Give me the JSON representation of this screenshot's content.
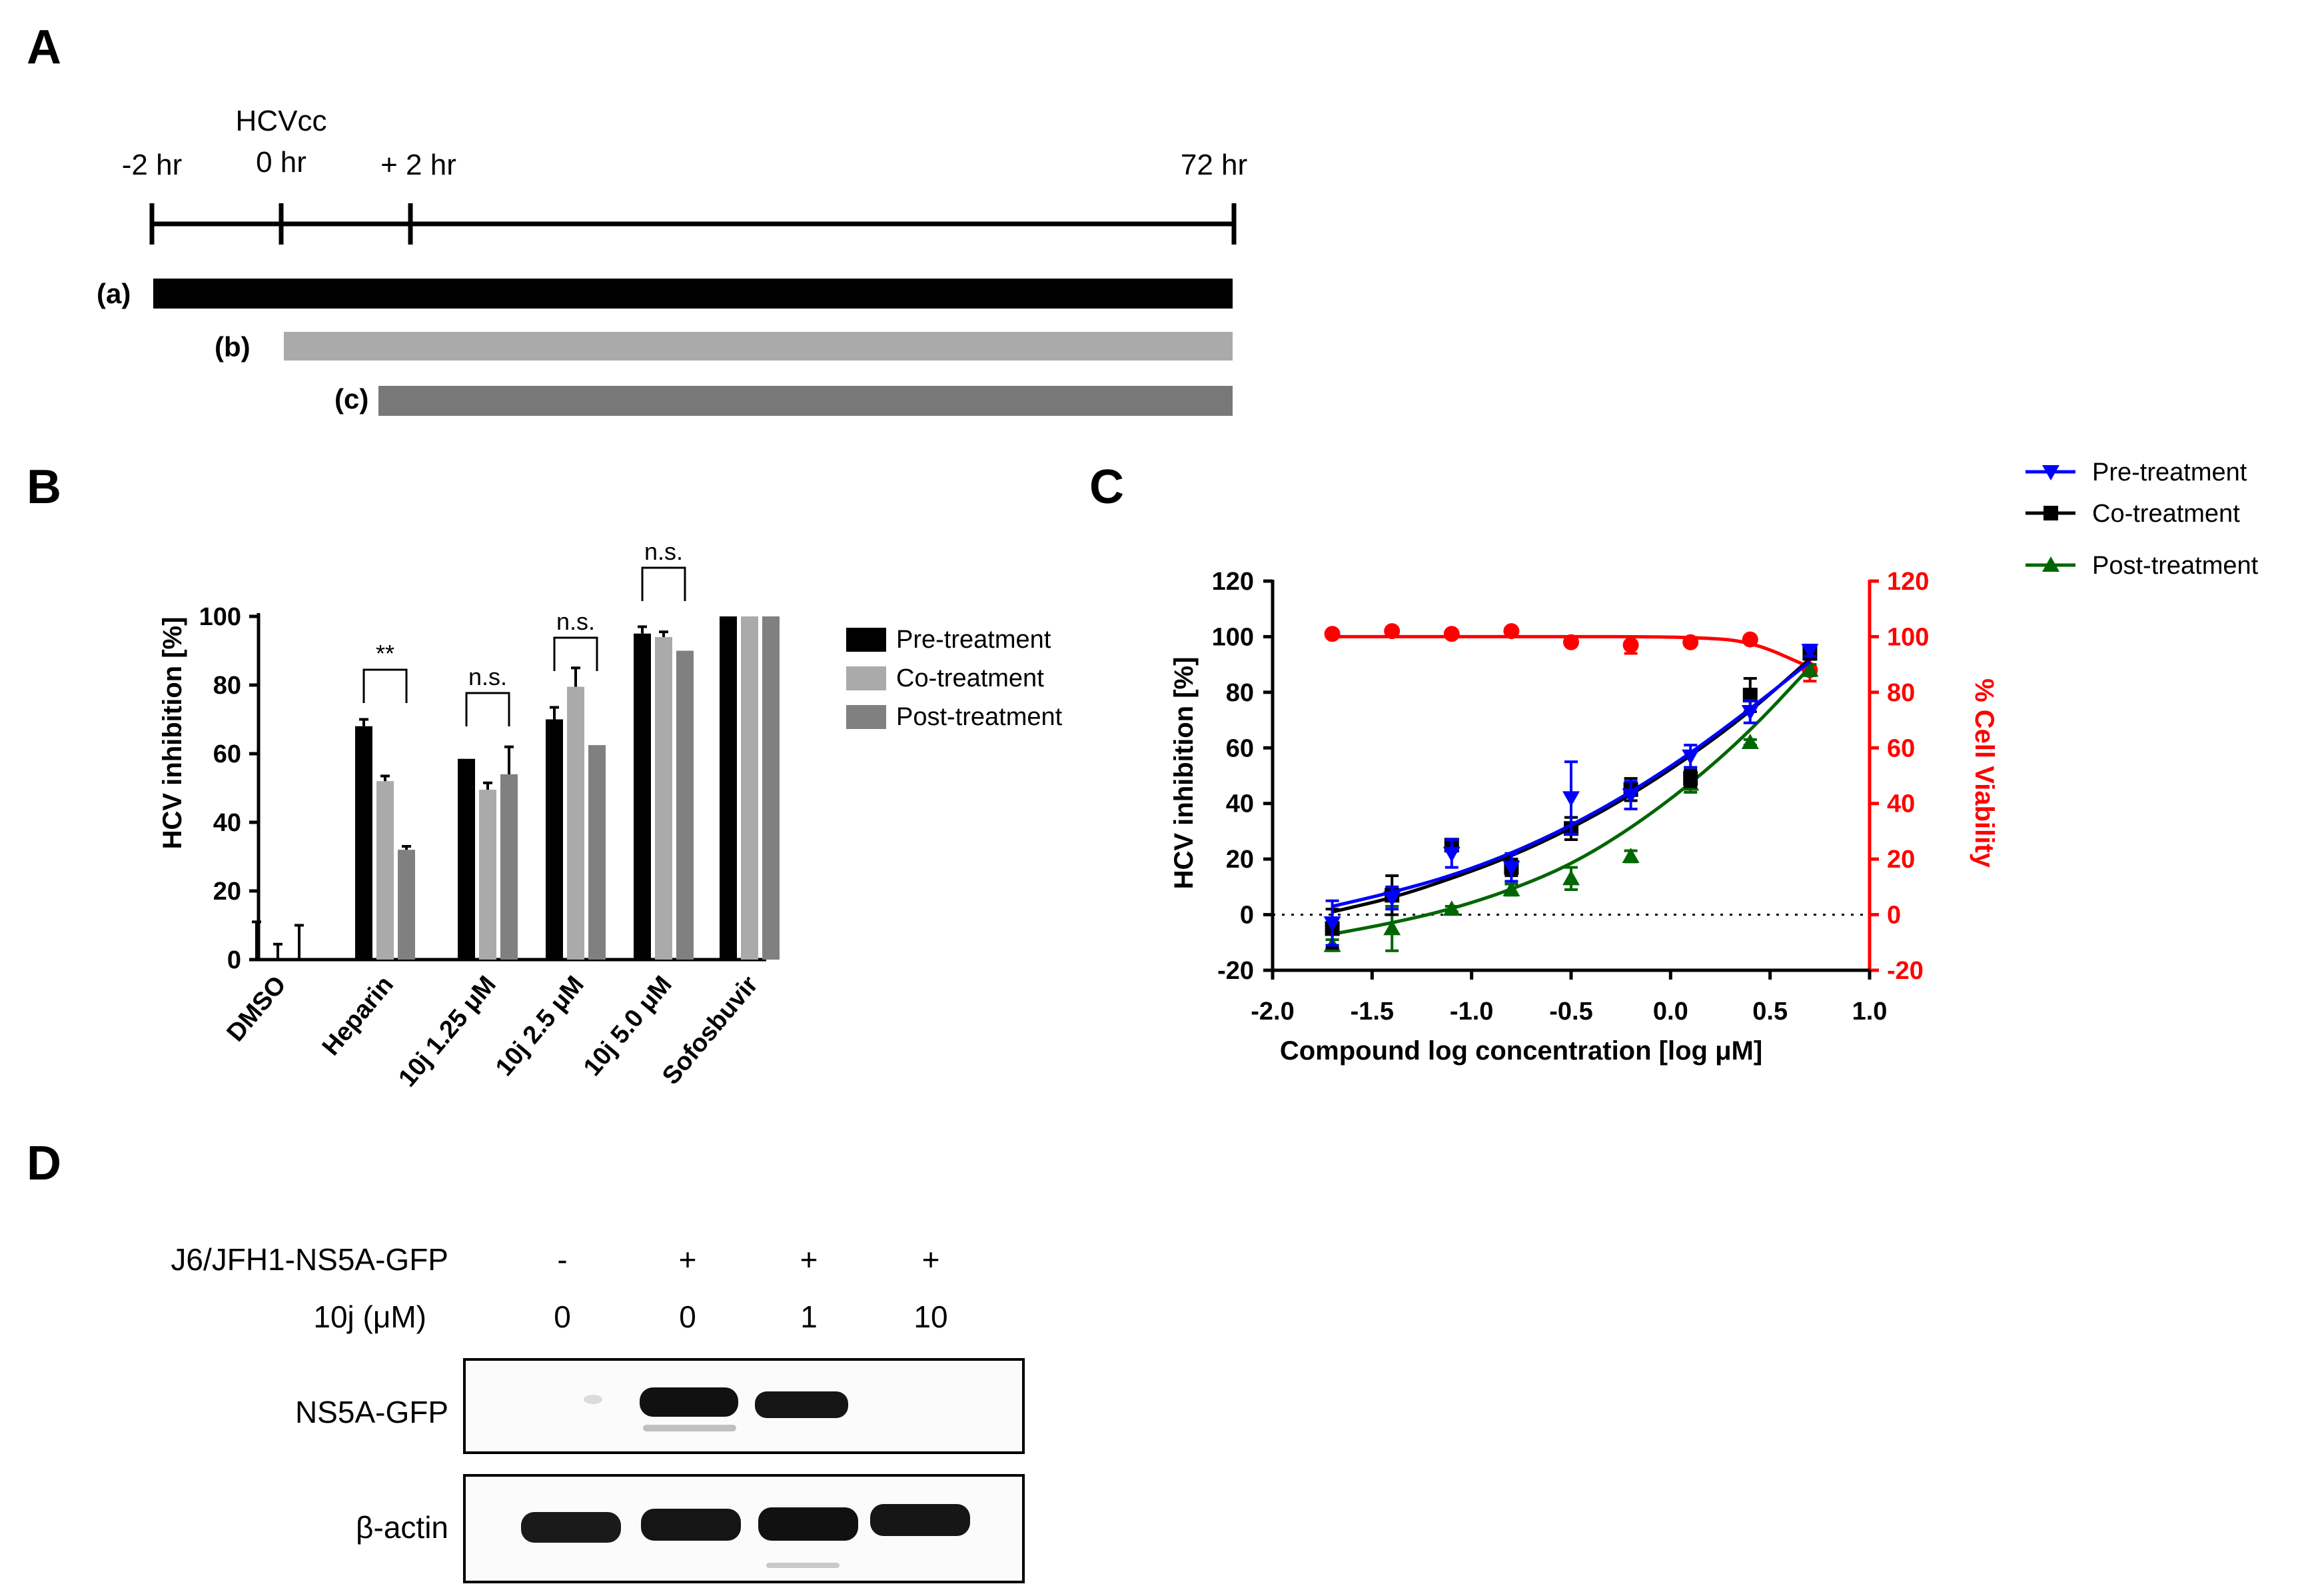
{
  "panels": {
    "a": "A",
    "b": "B",
    "c": "C",
    "d": "D"
  },
  "timeline": {
    "times": [
      "-2 hr",
      "0 hr",
      "+ 2 hr",
      "72 hr"
    ],
    "infection_label": "HCVcc",
    "treatments": [
      "(a)",
      "(b)",
      "(c)"
    ],
    "colors": {
      "a": "#000000",
      "b": "#aaaaaa",
      "c": "#787878"
    }
  },
  "chart_data": [
    {
      "id": "B",
      "type": "bar",
      "ylabel": "HCV inhibition [%]",
      "xlabel": "",
      "ylim": [
        0,
        100
      ],
      "yticks": [
        "0",
        "20",
        "40",
        "60",
        "80",
        "100"
      ],
      "categories": [
        "DMSO",
        "Heparin",
        "10j 1.25 μM",
        "10j 2.5 μM",
        "10j 5.0 μM",
        "Sofosbuvir"
      ],
      "series": [
        {
          "name": "Pre-treatment",
          "color": "#000000",
          "values": [
            0,
            68,
            58.5,
            70,
            95,
            100
          ],
          "errors": [
            11,
            2,
            0,
            3.5,
            2,
            0
          ]
        },
        {
          "name": "Co-treatment",
          "color": "#aaaaaa",
          "values": [
            0,
            52,
            49.5,
            79.5,
            94,
            100
          ],
          "errors": [
            4.5,
            1.5,
            2,
            5.5,
            1.5,
            0
          ]
        },
        {
          "name": "Post-treatment",
          "color": "#808080",
          "values": [
            0,
            32,
            54,
            62.5,
            90,
            100
          ],
          "errors": [
            10,
            1,
            8,
            0,
            0,
            0
          ]
        }
      ],
      "significance": [
        {
          "category": "Heparin",
          "label": "**"
        },
        {
          "category": "10j 1.25 μM",
          "label": "n.s."
        },
        {
          "category": "10j 2.5 μM",
          "label": "n.s."
        },
        {
          "category": "10j 5.0 μM",
          "label": "n.s."
        }
      ],
      "legend": "right"
    },
    {
      "id": "C",
      "type": "scatter",
      "xlabel": "Compound log concentration [log μM]",
      "ylabel": "HCV inhibition [%]",
      "ylabel_right": "% Cell Viability",
      "xlim": [
        -2.0,
        1.0
      ],
      "ylim": [
        -20,
        120
      ],
      "xticks": [
        "-2.0",
        "-1.5",
        "-1.0",
        "-0.5",
        "0.0",
        "0.5",
        "1.0"
      ],
      "yticks": [
        "-20",
        "0",
        "20",
        "40",
        "60",
        "80",
        "100",
        "120"
      ],
      "x": [
        -1.7,
        -1.4,
        -1.1,
        -0.8,
        -0.5,
        -0.2,
        0.1,
        0.4,
        0.7
      ],
      "series": [
        {
          "name": "Pre-treatment",
          "color": "#0000ff",
          "marker": "triangle-down",
          "values": [
            -3,
            6,
            22,
            17,
            42,
            43,
            57,
            73,
            95
          ],
          "errors": [
            8,
            4,
            5,
            5,
            13,
            5,
            4,
            4,
            2
          ],
          "fit": [
            3,
            8,
            14,
            22,
            32,
            44,
            58,
            74,
            91
          ]
        },
        {
          "name": "Co-treatment",
          "color": "#000000",
          "marker": "square",
          "values": [
            -5,
            7,
            25,
            17,
            31,
            45,
            49,
            79,
            94
          ],
          "errors": [
            7,
            7,
            2,
            3,
            4,
            4,
            3,
            6,
            2
          ],
          "fit": [
            1,
            6,
            13,
            21,
            31,
            43,
            57,
            73,
            92
          ]
        },
        {
          "name": "Post-treatment",
          "color": "#006600",
          "marker": "triangle-up",
          "values": [
            -11,
            -5,
            2,
            9,
            13,
            21,
            47,
            62,
            88
          ],
          "errors": [
            2,
            8,
            1,
            2,
            4,
            2,
            3,
            1,
            2
          ],
          "fit": [
            -7,
            -3,
            2,
            9,
            18,
            31,
            47,
            66,
            89
          ]
        },
        {
          "name": "% Cell Viability",
          "color": "#ff0000",
          "marker": "circle",
          "axis": "right",
          "values": [
            101,
            102,
            101,
            102,
            98,
            97,
            98,
            99,
            88
          ],
          "errors": [
            0,
            0,
            0,
            0,
            0,
            3,
            0,
            0,
            4
          ],
          "fit": [
            100,
            100,
            100,
            100,
            100,
            100,
            99.8,
            98.5,
            89
          ]
        }
      ],
      "reference_line": 0,
      "legend": "top-right"
    }
  ],
  "western": {
    "rows": [
      {
        "label": "J6/JFH1-NS5A-GFP",
        "values": [
          "-",
          "+",
          "+",
          "+"
        ]
      },
      {
        "label": "10j (μM)",
        "values": [
          "0",
          "0",
          "1",
          "10"
        ]
      }
    ],
    "blots": [
      "NS5A-GFP",
      "β-actin"
    ]
  }
}
